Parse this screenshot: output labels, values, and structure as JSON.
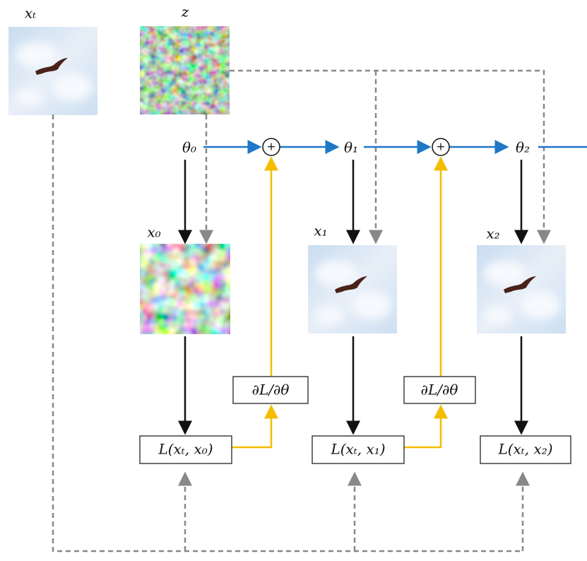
{
  "images": [
    {
      "label": "𝑥ₜ"
    },
    {
      "label": "𝑧"
    },
    {
      "label": "𝑥₀"
    },
    {
      "label": "𝑥₁"
    },
    {
      "label": "𝑥₂"
    }
  ],
  "params": [
    {
      "label": "θ₀"
    },
    {
      "label": "θ₁"
    },
    {
      "label": "θ₂"
    }
  ],
  "sums": [
    {
      "label": "+"
    },
    {
      "label": "+"
    }
  ],
  "gradients": [
    {
      "label": "∂L/∂θ"
    },
    {
      "label": "∂L/∂θ"
    }
  ],
  "losses": [
    {
      "label": "L(𝑥ₜ, 𝑥₀)"
    },
    {
      "label": "L(𝑥ₜ, 𝑥₁)"
    },
    {
      "label": "L(𝑥ₜ, 𝑥₂)"
    }
  ]
}
